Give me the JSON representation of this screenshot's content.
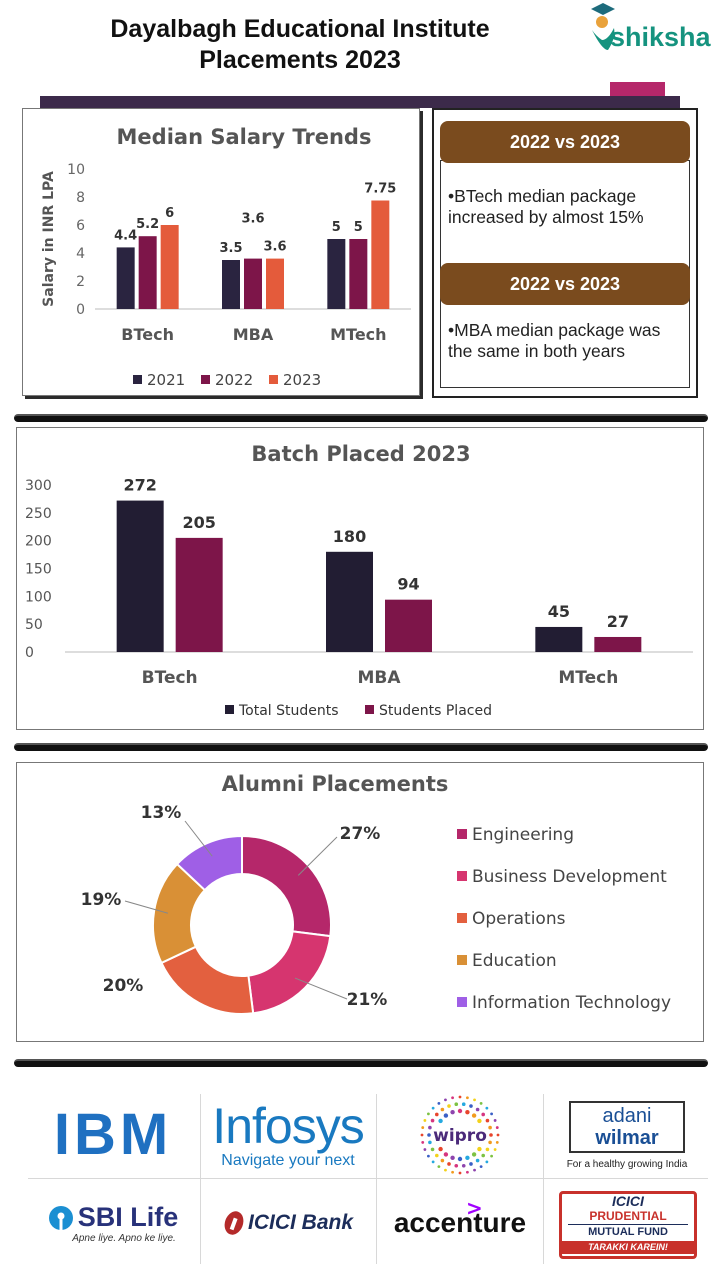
{
  "header": {
    "title_line1": "Dayalbagh Educational Institute",
    "title_line2": "Placements 2023",
    "brand": "shiksha"
  },
  "colors": {
    "y2021": "#2a2440",
    "y2022": "#7d1549",
    "y2023": "#e45b3b",
    "total": "#221d33",
    "placed": "#7d1549",
    "card": "#7a4b1e"
  },
  "cards": [
    {
      "heading": "2022 vs 2023",
      "text": "BTech median package increased by almost 15%"
    },
    {
      "heading": "2022 vs 2023",
      "text": "MBA median package was the same in both years"
    }
  ],
  "chart_data": [
    {
      "type": "bar",
      "title": "Median Salary Trends",
      "ylabel": "Salary in INR LPA",
      "xlabel": "",
      "ylim": [
        0,
        10
      ],
      "yticks": [
        0,
        2,
        4,
        6,
        8,
        10
      ],
      "categories": [
        "BTech",
        "MBA",
        "MTech"
      ],
      "series": [
        {
          "name": "2021",
          "values": [
            4.4,
            3.5,
            5
          ]
        },
        {
          "name": "2022",
          "values": [
            5.2,
            3.6,
            5
          ]
        },
        {
          "name": "2023",
          "values": [
            6,
            3.6,
            7.75
          ]
        }
      ],
      "legend": "bottom"
    },
    {
      "type": "bar",
      "title": "Batch Placed 2023",
      "ylim": [
        0,
        300
      ],
      "yticks": [
        0,
        50,
        100,
        150,
        200,
        250,
        300
      ],
      "categories": [
        "BTech",
        "MBA",
        "MTech"
      ],
      "series": [
        {
          "name": "Total Students",
          "values": [
            272,
            180,
            45
          ]
        },
        {
          "name": "Students Placed",
          "values": [
            205,
            94,
            27
          ]
        }
      ],
      "legend": "bottom"
    },
    {
      "type": "pie",
      "title": "Alumni Placements",
      "labels": [
        "Engineering",
        "Business Development",
        "Operations",
        "Education",
        "Information Technology"
      ],
      "values": [
        27,
        21,
        20,
        19,
        13
      ],
      "value_labels": [
        "27%",
        "21%",
        "20%",
        "19%",
        "13%"
      ],
      "colors": [
        "#b5276a",
        "#d6356f",
        "#e3603f",
        "#d99036",
        "#9f5fe6"
      ],
      "legend": "right"
    }
  ],
  "recruiters": [
    {
      "name": "IBM",
      "text": "IBM"
    },
    {
      "name": "Infosys",
      "text": "Infosys",
      "tagline": "Navigate your next"
    },
    {
      "name": "Wipro",
      "text": "wipro"
    },
    {
      "name": "Adani Wilmar",
      "text_top": "adani",
      "text_bottom": "wilmar",
      "tagline": "For a healthy growing India"
    },
    {
      "name": "SBI Life",
      "text": "SBI Life",
      "tagline": "Apne liye. Apno ke liye."
    },
    {
      "name": "ICICI Bank",
      "text": "ICICI Bank"
    },
    {
      "name": "Accenture",
      "text": "accenture"
    },
    {
      "name": "ICICI Prudential",
      "line1": "ICICI",
      "line2": "PRUDENTIAL",
      "line3": "MUTUAL FUND",
      "line4": "TARAKKI KAREIN!"
    }
  ]
}
